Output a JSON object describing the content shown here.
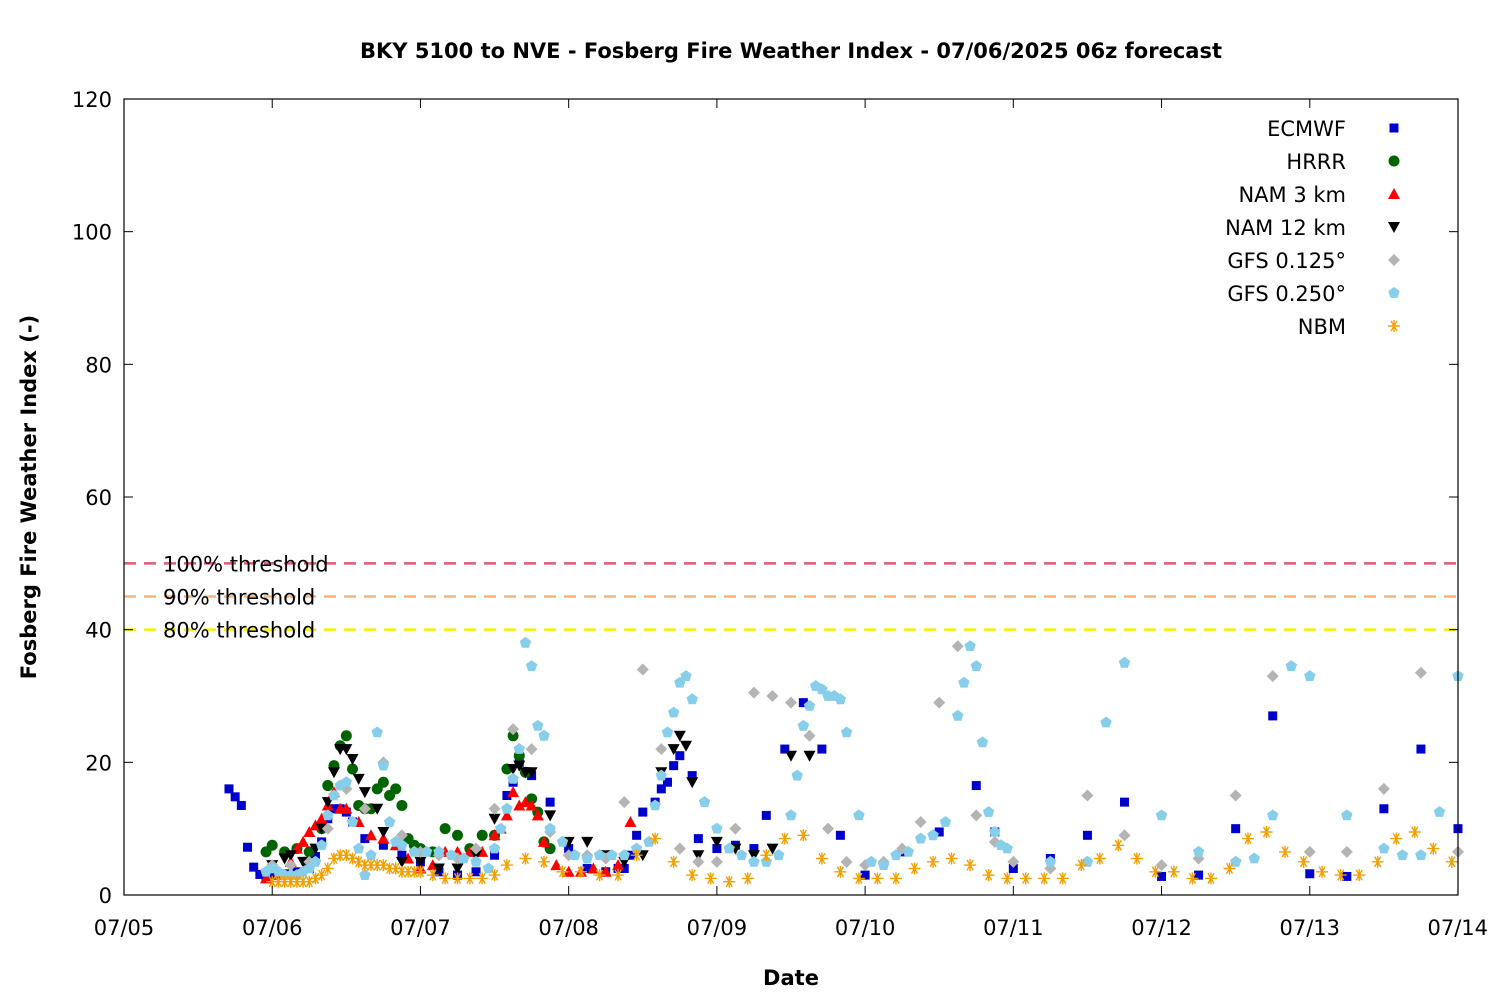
{
  "chart_data": {
    "type": "scatter",
    "title": "BKY 5100 to NVE - Fosberg Fire Weather Index - 07/06/2025 06z forecast",
    "xlabel": "Date",
    "ylabel": "Fosberg Fire Weather Index (-)",
    "xlim": [
      "07/05",
      "07/14"
    ],
    "ylim": [
      0,
      120
    ],
    "x_ticks": [
      "07/05",
      "07/06",
      "07/07",
      "07/08",
      "07/09",
      "07/10",
      "07/11",
      "07/12",
      "07/13",
      "07/14"
    ],
    "y_ticks": [
      0,
      20,
      40,
      60,
      80,
      100,
      120
    ],
    "grid": false,
    "legend_position": "top-right",
    "thresholds": [
      {
        "label": "100% threshold",
        "value": 50,
        "color": "#e05a73"
      },
      {
        "label": "90% threshold",
        "value": 45,
        "color": "#f5b57a"
      },
      {
        "label": "80% threshold",
        "value": 40,
        "color": "#f5f000"
      }
    ],
    "series": [
      {
        "name": "ECMWF",
        "marker": "square",
        "color": "#0000cc",
        "x": [
          "07/05 17:00",
          "07/05 18:00",
          "07/05 19:00",
          "07/05 20:00",
          "07/05 21:00",
          "07/05 22:00",
          "07/05 23:00",
          "07/06 00:00",
          "07/06 02:00",
          "07/06 04:00",
          "07/06 06:00",
          "07/06 07:00",
          "07/06 08:00",
          "07/06 09:00",
          "07/06 10:00",
          "07/06 11:00",
          "07/06 12:00",
          "07/06 13:00",
          "07/06 15:00",
          "07/06 18:00",
          "07/06 21:00",
          "07/07 00:00",
          "07/07 03:00",
          "07/07 06:00",
          "07/07 09:00",
          "07/07 12:00",
          "07/07 14:00",
          "07/07 15:00",
          "07/07 16:00",
          "07/07 18:00",
          "07/07 21:00",
          "07/08 00:00",
          "07/08 03:00",
          "07/08 06:00",
          "07/08 08:00",
          "07/08 09:00",
          "07/08 10:00",
          "07/08 11:00",
          "07/08 12:00",
          "07/08 14:00",
          "07/08 15:00",
          "07/08 16:00",
          "07/08 17:00",
          "07/08 18:00",
          "07/08 20:00",
          "07/08 21:00",
          "07/09 00:00",
          "07/09 03:00",
          "07/09 06:00",
          "07/09 08:00",
          "07/09 11:00",
          "07/09 14:00",
          "07/09 17:00",
          "07/09 20:00",
          "07/10 00:00",
          "07/10 06:00",
          "07/10 12:00",
          "07/10 18:00",
          "07/10 21:00",
          "07/11 00:00",
          "07/11 06:00",
          "07/11 12:00",
          "07/11 18:00",
          "07/12 00:00",
          "07/12 06:00",
          "07/12 12:00",
          "07/12 18:00",
          "07/13 00:00",
          "07/13 06:00",
          "07/13 12:00",
          "07/13 18:00",
          "07/14 00:00"
        ],
        "y": [
          16,
          14.8,
          13.5,
          7.2,
          4.2,
          3.1,
          2.6,
          3.0,
          3.2,
          3.5,
          4.0,
          5.8,
          8.0,
          11.5,
          13.0,
          13.0,
          12.5,
          11.0,
          8.5,
          7.5,
          6.0,
          5.0,
          3.5,
          3.0,
          3.5,
          6.0,
          15.0,
          17.0,
          20.0,
          18.0,
          14.0,
          7.0,
          4.0,
          3.5,
          4.0,
          4.0,
          6.0,
          9.0,
          12.5,
          14.0,
          16.0,
          17.0,
          19.5,
          21.0,
          18.0,
          8.5,
          7.0,
          7.5,
          7.0,
          12.0,
          22.0,
          29.0,
          22.0,
          9.0,
          3.0,
          6.5,
          9.5,
          16.5,
          9.5,
          4.0,
          5.5,
          9.0,
          14.0,
          2.8,
          3.0,
          10.0,
          27.0,
          3.2,
          2.8,
          13.0,
          22.0,
          10.0
        ]
      },
      {
        "name": "HRRR",
        "marker": "circle",
        "color": "#006400",
        "x": [
          "07/05 23:00",
          "07/06 00:00",
          "07/06 02:00",
          "07/06 04:00",
          "07/06 06:00",
          "07/06 08:00",
          "07/06 09:00",
          "07/06 10:00",
          "07/06 11:00",
          "07/06 12:00",
          "07/06 13:00",
          "07/06 14:00",
          "07/06 15:00",
          "07/06 16:00",
          "07/06 17:00",
          "07/06 18:00",
          "07/06 19:00",
          "07/06 20:00",
          "07/06 21:00",
          "07/06 22:00",
          "07/06 23:00",
          "07/07 00:00",
          "07/07 02:00",
          "07/07 04:00",
          "07/07 06:00",
          "07/07 08:00",
          "07/07 10:00",
          "07/07 12:00",
          "07/07 14:00",
          "07/07 15:00",
          "07/07 16:00",
          "07/07 17:00",
          "07/07 18:00",
          "07/07 19:00",
          "07/07 20:00",
          "07/07 21:00"
        ],
        "y": [
          6.5,
          7.5,
          6.5,
          7.0,
          6.5,
          10.0,
          16.5,
          19.5,
          22.5,
          24.0,
          19.0,
          13.5,
          13.0,
          13.0,
          16.0,
          17.0,
          15.0,
          16.0,
          13.5,
          8.5,
          7.5,
          7.0,
          6.5,
          10.0,
          9.0,
          7.0,
          9.0,
          9.0,
          19.0,
          24.0,
          21.0,
          18.5,
          14.5,
          12.5,
          8.0,
          7.0
        ]
      },
      {
        "name": "NAM 3 km",
        "marker": "triangle-up",
        "color": "#ff0000",
        "x": [
          "07/05 23:00",
          "07/06 01:00",
          "07/06 03:00",
          "07/06 04:00",
          "07/06 05:00",
          "07/06 06:00",
          "07/06 07:00",
          "07/06 08:00",
          "07/06 09:00",
          "07/06 10:00",
          "07/06 11:00",
          "07/06 12:00",
          "07/06 14:00",
          "07/06 16:00",
          "07/06 18:00",
          "07/06 20:00",
          "07/06 22:00",
          "07/07 00:00",
          "07/07 02:00",
          "07/07 04:00",
          "07/07 06:00",
          "07/07 08:00",
          "07/07 10:00",
          "07/07 12:00",
          "07/07 13:00",
          "07/07 14:00",
          "07/07 15:00",
          "07/07 16:00",
          "07/07 17:00",
          "07/07 18:00",
          "07/07 19:00",
          "07/07 20:00",
          "07/07 22:00",
          "07/08 00:00",
          "07/08 02:00",
          "07/08 04:00",
          "07/08 06:00",
          "07/08 08:00",
          "07/08 10:00"
        ],
        "y": [
          2.5,
          3.0,
          5.0,
          7.0,
          8.0,
          9.5,
          10.5,
          11.5,
          13.5,
          15.5,
          13.0,
          13.0,
          11.0,
          9.0,
          8.5,
          7.5,
          5.5,
          4.0,
          4.5,
          6.5,
          6.5,
          6.5,
          6.5,
          9.0,
          10.0,
          12.0,
          15.5,
          13.5,
          14.0,
          13.5,
          12.0,
          8.0,
          4.5,
          3.5,
          3.5,
          4.0,
          3.5,
          4.5,
          11.0
        ]
      },
      {
        "name": "NAM 12 km",
        "marker": "triangle-down",
        "color": "#000000",
        "x": [
          "07/06 00:00",
          "07/06 02:00",
          "07/06 03:00",
          "07/06 05:00",
          "07/06 06:00",
          "07/06 07:00",
          "07/06 08:00",
          "07/06 09:00",
          "07/06 10:00",
          "07/06 11:00",
          "07/06 12:00",
          "07/06 13:00",
          "07/06 14:00",
          "07/06 15:00",
          "07/06 17:00",
          "07/06 18:00",
          "07/06 21:00",
          "07/07 00:00",
          "07/07 03:00",
          "07/07 06:00",
          "07/07 09:00",
          "07/07 12:00",
          "07/07 15:00",
          "07/07 16:00",
          "07/07 17:00",
          "07/07 18:00",
          "07/07 21:00",
          "07/08 00:00",
          "07/08 03:00",
          "07/08 06:00",
          "07/08 09:00",
          "07/08 12:00",
          "07/08 15:00",
          "07/08 17:00",
          "07/08 18:00",
          "07/08 19:00",
          "07/08 20:00",
          "07/08 21:00",
          "07/09 00:00",
          "07/09 03:00",
          "07/09 06:00",
          "07/09 09:00",
          "07/09 12:00",
          "07/09 15:00"
        ],
        "y": [
          4.5,
          5.5,
          6.0,
          5.0,
          5.0,
          7.0,
          10.0,
          14.0,
          18.5,
          22.0,
          22.0,
          20.5,
          17.5,
          15.5,
          13.0,
          9.5,
          5.0,
          5.0,
          4.0,
          4.0,
          6.0,
          11.5,
          19.0,
          19.5,
          18.5,
          18.5,
          12.0,
          8.0,
          8.0,
          6.0,
          5.0,
          6.0,
          18.5,
          22.0,
          24.0,
          22.5,
          17.0,
          6.0,
          8.0,
          7.0,
          6.0,
          7.0,
          21.0,
          21.0
        ]
      },
      {
        "name": "GFS 0.125°",
        "marker": "diamond",
        "color": "#b4b4b4",
        "x": [
          "07/06 00:00",
          "07/06 03:00",
          "07/06 06:00",
          "07/06 09:00",
          "07/06 12:00",
          "07/06 15:00",
          "07/06 18:00",
          "07/06 21:00",
          "07/07 00:00",
          "07/07 03:00",
          "07/07 06:00",
          "07/07 09:00",
          "07/07 12:00",
          "07/07 15:00",
          "07/07 18:00",
          "07/07 21:00",
          "07/08 00:00",
          "07/08 03:00",
          "07/08 06:00",
          "07/08 09:00",
          "07/08 12:00",
          "07/08 15:00",
          "07/08 18:00",
          "07/08 21:00",
          "07/09 00:00",
          "07/09 03:00",
          "07/09 06:00",
          "07/09 09:00",
          "07/09 12:00",
          "07/09 15:00",
          "07/09 18:00",
          "07/09 21:00",
          "07/10 00:00",
          "07/10 03:00",
          "07/10 06:00",
          "07/10 09:00",
          "07/10 12:00",
          "07/10 15:00",
          "07/10 18:00",
          "07/10 21:00",
          "07/11 00:00",
          "07/11 06:00",
          "07/11 12:00",
          "07/11 18:00",
          "07/12 00:00",
          "07/12 06:00",
          "07/12 12:00",
          "07/12 18:00",
          "07/13 00:00",
          "07/13 06:00",
          "07/13 12:00",
          "07/13 18:00",
          "07/14 00:00"
        ],
        "y": [
          4.5,
          4.5,
          5.0,
          10.0,
          16.0,
          13.0,
          20.0,
          9.0,
          6.5,
          6.0,
          5.5,
          7.0,
          13.0,
          25.0,
          22.0,
          9.5,
          6.0,
          6.0,
          5.5,
          14.0,
          34.0,
          22.0,
          7.0,
          5.0,
          5.0,
          10.0,
          30.5,
          30.0,
          29.0,
          24.0,
          10.0,
          5.0,
          4.5,
          5.0,
          7.0,
          11.0,
          29.0,
          37.5,
          12.0,
          8.0,
          5.0,
          4.0,
          15.0,
          9.0,
          4.5,
          5.5,
          15.0,
          33.0,
          6.5,
          6.5,
          16.0,
          33.5,
          6.5
        ]
      },
      {
        "name": "GFS 0.250°",
        "marker": "pentagon",
        "color": "#87ceeb",
        "x": [
          "07/05 23:00",
          "07/06 00:00",
          "07/06 01:00",
          "07/06 02:00",
          "07/06 03:00",
          "07/06 04:00",
          "07/06 05:00",
          "07/06 06:00",
          "07/06 07:00",
          "07/06 08:00",
          "07/06 09:00",
          "07/06 10:00",
          "07/06 11:00",
          "07/06 12:00",
          "07/06 13:00",
          "07/06 14:00",
          "07/06 15:00",
          "07/06 16:00",
          "07/06 17:00",
          "07/06 18:00",
          "07/06 19:00",
          "07/06 20:00",
          "07/06 21:00",
          "07/06 23:00",
          "07/07 01:00",
          "07/07 03:00",
          "07/07 05:00",
          "07/07 07:00",
          "07/07 09:00",
          "07/07 11:00",
          "07/07 12:00",
          "07/07 13:00",
          "07/07 14:00",
          "07/07 15:00",
          "07/07 16:00",
          "07/07 17:00",
          "07/07 18:00",
          "07/07 19:00",
          "07/07 20:00",
          "07/07 21:00",
          "07/07 23:00",
          "07/08 01:00",
          "07/08 03:00",
          "07/08 05:00",
          "07/08 07:00",
          "07/08 09:00",
          "07/08 11:00",
          "07/08 13:00",
          "07/08 14:00",
          "07/08 15:00",
          "07/08 16:00",
          "07/08 17:00",
          "07/08 18:00",
          "07/08 19:00",
          "07/08 20:00",
          "07/08 22:00",
          "07/09 00:00",
          "07/09 02:00",
          "07/09 04:00",
          "07/09 06:00",
          "07/09 08:00",
          "07/09 10:00",
          "07/09 12:00",
          "07/09 13:00",
          "07/09 14:00",
          "07/09 15:00",
          "07/09 16:00",
          "07/09 17:00",
          "07/09 18:00",
          "07/09 19:00",
          "07/09 20:00",
          "07/09 21:00",
          "07/09 23:00",
          "07/10 01:00",
          "07/10 03:00",
          "07/10 05:00",
          "07/10 07:00",
          "07/10 09:00",
          "07/10 11:00",
          "07/10 13:00",
          "07/10 15:00",
          "07/10 16:00",
          "07/10 17:00",
          "07/10 18:00",
          "07/10 19:00",
          "07/10 20:00",
          "07/10 21:00",
          "07/10 22:00",
          "07/10 23:00",
          "07/11 06:00",
          "07/11 12:00",
          "07/11 15:00",
          "07/11 18:00",
          "07/12 00:00",
          "07/12 06:00",
          "07/12 12:00",
          "07/12 15:00",
          "07/12 18:00",
          "07/12 21:00",
          "07/13 00:00",
          "07/13 06:00",
          "07/13 12:00",
          "07/13 15:00",
          "07/13 18:00",
          "07/13 21:00",
          "07/14 00:00"
        ],
        "y": [
          3.5,
          4.0,
          3.5,
          3.0,
          3.0,
          3.0,
          3.5,
          4.0,
          5.0,
          7.5,
          12.0,
          15.0,
          16.5,
          17.0,
          11.0,
          7.0,
          3.0,
          6.0,
          24.5,
          19.5,
          11.0,
          8.0,
          7.5,
          6.5,
          6.5,
          6.5,
          6.0,
          5.5,
          5.0,
          4.0,
          7.0,
          10.0,
          13.0,
          17.5,
          22.0,
          38.0,
          34.5,
          25.5,
          24.0,
          10.0,
          8.0,
          6.0,
          5.5,
          6.0,
          6.0,
          6.0,
          7.0,
          8.0,
          13.5,
          18.0,
          24.5,
          27.5,
          32.0,
          33.0,
          29.5,
          14.0,
          10.0,
          7.0,
          6.0,
          5.0,
          5.0,
          6.0,
          12.0,
          18.0,
          25.5,
          28.5,
          31.5,
          31.0,
          30.0,
          30.0,
          29.5,
          24.5,
          12.0,
          5.0,
          4.5,
          6.0,
          6.5,
          8.5,
          9.0,
          11.0,
          27.0,
          32.0,
          37.5,
          34.5,
          23.0,
          12.5,
          9.5,
          7.5,
          7.0,
          5.0,
          5.0,
          26.0,
          35.0,
          12.0,
          6.5,
          5.0,
          5.5,
          12.0,
          34.5,
          33.0,
          12.0,
          7.0,
          6.0,
          6.0,
          12.5,
          33.0
        ]
      },
      {
        "name": "NBM",
        "marker": "asterisk",
        "color": "#f0a000",
        "x": [
          "07/06 00:00",
          "07/06 01:00",
          "07/06 02:00",
          "07/06 03:00",
          "07/06 04:00",
          "07/06 05:00",
          "07/06 06:00",
          "07/06 07:00",
          "07/06 08:00",
          "07/06 09:00",
          "07/06 10:00",
          "07/06 11:00",
          "07/06 12:00",
          "07/06 13:00",
          "07/06 14:00",
          "07/06 15:00",
          "07/06 16:00",
          "07/06 17:00",
          "07/06 18:00",
          "07/06 19:00",
          "07/06 20:00",
          "07/06 21:00",
          "07/06 22:00",
          "07/06 23:00",
          "07/07 00:00",
          "07/07 02:00",
          "07/07 04:00",
          "07/07 06:00",
          "07/07 08:00",
          "07/07 10:00",
          "07/07 12:00",
          "07/07 14:00",
          "07/07 17:00",
          "07/07 20:00",
          "07/07 23:00",
          "07/08 02:00",
          "07/08 05:00",
          "07/08 08:00",
          "07/08 11:00",
          "07/08 14:00",
          "07/08 17:00",
          "07/08 20:00",
          "07/08 23:00",
          "07/09 02:00",
          "07/09 05:00",
          "07/09 08:00",
          "07/09 11:00",
          "07/09 14:00",
          "07/09 17:00",
          "07/09 20:00",
          "07/09 23:00",
          "07/10 02:00",
          "07/10 05:00",
          "07/10 08:00",
          "07/10 11:00",
          "07/10 14:00",
          "07/10 17:00",
          "07/10 20:00",
          "07/10 23:00",
          "07/11 02:00",
          "07/11 05:00",
          "07/11 08:00",
          "07/11 11:00",
          "07/11 14:00",
          "07/11 17:00",
          "07/11 20:00",
          "07/11 23:00",
          "07/12 02:00",
          "07/12 05:00",
          "07/12 08:00",
          "07/12 11:00",
          "07/12 14:00",
          "07/12 17:00",
          "07/12 20:00",
          "07/12 23:00",
          "07/13 02:00",
          "07/13 05:00",
          "07/13 08:00",
          "07/13 11:00",
          "07/13 14:00",
          "07/13 17:00",
          "07/13 20:00",
          "07/13 23:00"
        ],
        "y": [
          2.0,
          2.0,
          2.0,
          2.0,
          2.0,
          2.0,
          2.0,
          2.5,
          3.0,
          4.0,
          5.5,
          6.0,
          6.0,
          5.5,
          5.0,
          4.5,
          4.5,
          4.5,
          4.5,
          4.0,
          4.0,
          3.5,
          3.5,
          3.5,
          3.5,
          3.0,
          2.5,
          2.5,
          2.5,
          2.5,
          3.0,
          4.5,
          5.5,
          5.0,
          3.5,
          3.5,
          3.0,
          3.0,
          6.0,
          8.5,
          5.0,
          3.0,
          2.5,
          2.0,
          2.5,
          6.0,
          8.5,
          9.0,
          5.5,
          3.5,
          2.5,
          2.5,
          2.5,
          4.0,
          5.0,
          5.5,
          4.5,
          3.0,
          2.5,
          2.5,
          2.5,
          2.5,
          4.5,
          5.5,
          7.5,
          5.5,
          3.5,
          3.5,
          2.5,
          2.5,
          4.0,
          8.5,
          9.5,
          6.5,
          5.0,
          3.5,
          3.0,
          3.0,
          5.0,
          8.5,
          9.5,
          7.0,
          5.0
        ]
      }
    ]
  }
}
